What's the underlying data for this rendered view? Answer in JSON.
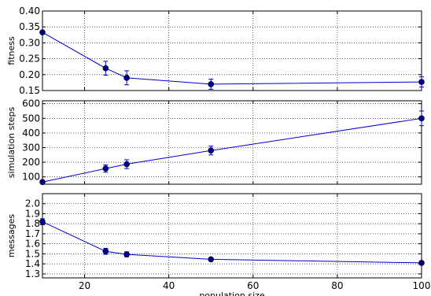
{
  "chart_data": [
    {
      "type": "line",
      "xlabel": "",
      "ylabel": "fitness",
      "xlim": [
        10,
        100
      ],
      "ylim": [
        0.15,
        0.4
      ],
      "yticks": [
        "0.15",
        "0.20",
        "0.25",
        "0.30",
        "0.35",
        "0.40"
      ],
      "xticks": [],
      "grid": true,
      "color": "#0000cc",
      "series": [
        {
          "x": [
            10,
            25,
            30,
            50,
            100
          ],
          "y": [
            0.333,
            0.22,
            0.19,
            0.17,
            0.177
          ],
          "err": [
            0.0,
            0.022,
            0.022,
            0.016,
            0.016
          ]
        }
      ]
    },
    {
      "type": "line",
      "xlabel": "",
      "ylabel": "simulation steps",
      "xlim": [
        10,
        100
      ],
      "ylim": [
        50,
        620
      ],
      "yticks": [
        "100",
        "200",
        "300",
        "400",
        "500",
        "600"
      ],
      "xticks": [],
      "grid": true,
      "color": "#0000cc",
      "series": [
        {
          "x": [
            10,
            25,
            30,
            50,
            100
          ],
          "y": [
            65,
            157,
            187,
            280,
            500
          ],
          "err": [
            0,
            25,
            30,
            30,
            50
          ]
        }
      ]
    },
    {
      "type": "line",
      "xlabel": "population size",
      "ylabel": "messages",
      "xlim": [
        10,
        100
      ],
      "ylim": [
        1.26,
        2.1
      ],
      "yticks": [
        "1.3",
        "1.4",
        "1.5",
        "1.6",
        "1.7",
        "1.8",
        "1.9",
        "2.0"
      ],
      "xticks": [
        "20",
        "40",
        "60",
        "80",
        "100"
      ],
      "grid": true,
      "color": "#0000cc",
      "series": [
        {
          "x": [
            10,
            25,
            30,
            50,
            100
          ],
          "y": [
            1.82,
            1.525,
            1.495,
            1.445,
            1.41
          ],
          "err": [
            0.03,
            0.03,
            0.025,
            0.01,
            0.01
          ]
        }
      ]
    }
  ]
}
